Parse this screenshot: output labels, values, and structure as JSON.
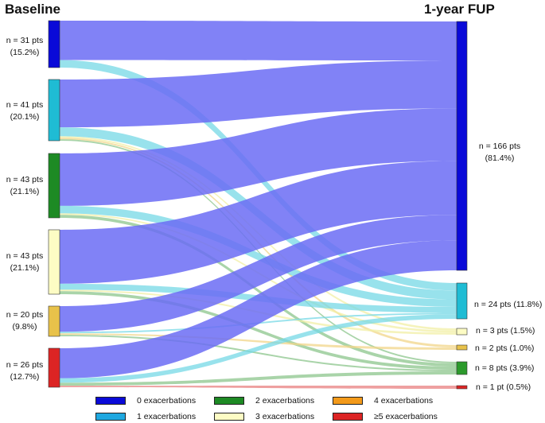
{
  "headings": {
    "left": "Baseline",
    "right": "1-year FUP"
  },
  "left_nodes": [
    {
      "count": "n = 31 pts",
      "pct": "(15.2%)",
      "color": "#0a0ad8",
      "value": 31
    },
    {
      "count": "n = 41 pts",
      "pct": "(20.1%)",
      "color": "#1fbcd4",
      "value": 41
    },
    {
      "count": "n = 43 pts",
      "pct": "(21.1%)",
      "color": "#1d8a24",
      "value": 43
    },
    {
      "count": "n = 43 pts",
      "pct": "(21.1%)",
      "color": "#fdfcc4",
      "value": 43
    },
    {
      "count": "n = 20 pts",
      "pct": "(9.8%)",
      "color": "#e8c24a",
      "value": 20
    },
    {
      "count": "n = 26 pts",
      "pct": "(12.7%)",
      "color": "#dc2424",
      "value": 26
    }
  ],
  "right_nodes": [
    {
      "count": "n = 166 pts",
      "pct": "(81.4%)",
      "color": "#0a0ad8",
      "value": 166
    },
    {
      "label": "n = 24 pts (11.8%)",
      "color": "#1fbcd4",
      "value": 24
    },
    {
      "label": "n = 3 pts (1.5%)",
      "color": "#fdfcc4",
      "value": 3
    },
    {
      "label": "n = 2 pts (1.0%)",
      "color": "#e8c24a",
      "value": 2
    },
    {
      "label": "n = 8 pts (3.9%)",
      "color": "#2c9a2c",
      "value": 8
    },
    {
      "label": "n = 1 pt (0.5%)",
      "color": "#dc2424",
      "value": 1
    }
  ],
  "flows": [
    {
      "from": 0,
      "to": 0,
      "value": 26
    },
    {
      "from": 0,
      "to": 1,
      "value": 5
    },
    {
      "from": 1,
      "to": 0,
      "value": 32
    },
    {
      "from": 1,
      "to": 1,
      "value": 6
    },
    {
      "from": 1,
      "to": 2,
      "value": 1
    },
    {
      "from": 1,
      "to": 3,
      "value": 1
    },
    {
      "from": 1,
      "to": 4,
      "value": 1
    },
    {
      "from": 2,
      "to": 0,
      "value": 35
    },
    {
      "from": 2,
      "to": 1,
      "value": 5
    },
    {
      "from": 2,
      "to": 2,
      "value": 1
    },
    {
      "from": 2,
      "to": 4,
      "value": 2
    },
    {
      "from": 3,
      "to": 0,
      "value": 36
    },
    {
      "from": 3,
      "to": 1,
      "value": 4
    },
    {
      "from": 3,
      "to": 2,
      "value": 1
    },
    {
      "from": 3,
      "to": 4,
      "value": 2
    },
    {
      "from": 4,
      "to": 0,
      "value": 17
    },
    {
      "from": 4,
      "to": 1,
      "value": 1
    },
    {
      "from": 4,
      "to": 3,
      "value": 1
    },
    {
      "from": 4,
      "to": 4,
      "value": 1
    },
    {
      "from": 5,
      "to": 0,
      "value": 20
    },
    {
      "from": 5,
      "to": 1,
      "value": 3
    },
    {
      "from": 5,
      "to": 4,
      "value": 2
    },
    {
      "from": 5,
      "to": 5,
      "value": 1
    }
  ],
  "flow_colors": [
    "#6b6cf4",
    "#76d8e6",
    "#f2efa6",
    "#f2d58a",
    "#8cc58c",
    "#e88080"
  ],
  "legend": [
    {
      "label": "0 exacerbations",
      "color": "#0a0ad8"
    },
    {
      "label": "2 exacerbations",
      "color": "#1d8a24"
    },
    {
      "label": "4 exacerbations",
      "color": "#f39a1a"
    },
    {
      "label": "1 exacerbations",
      "color": "#1fa8e0"
    },
    {
      "label": "3 exacerbations",
      "color": "#fdfcc4"
    },
    {
      "label": "≥5 exacerbations",
      "color": "#dc2424"
    }
  ]
}
